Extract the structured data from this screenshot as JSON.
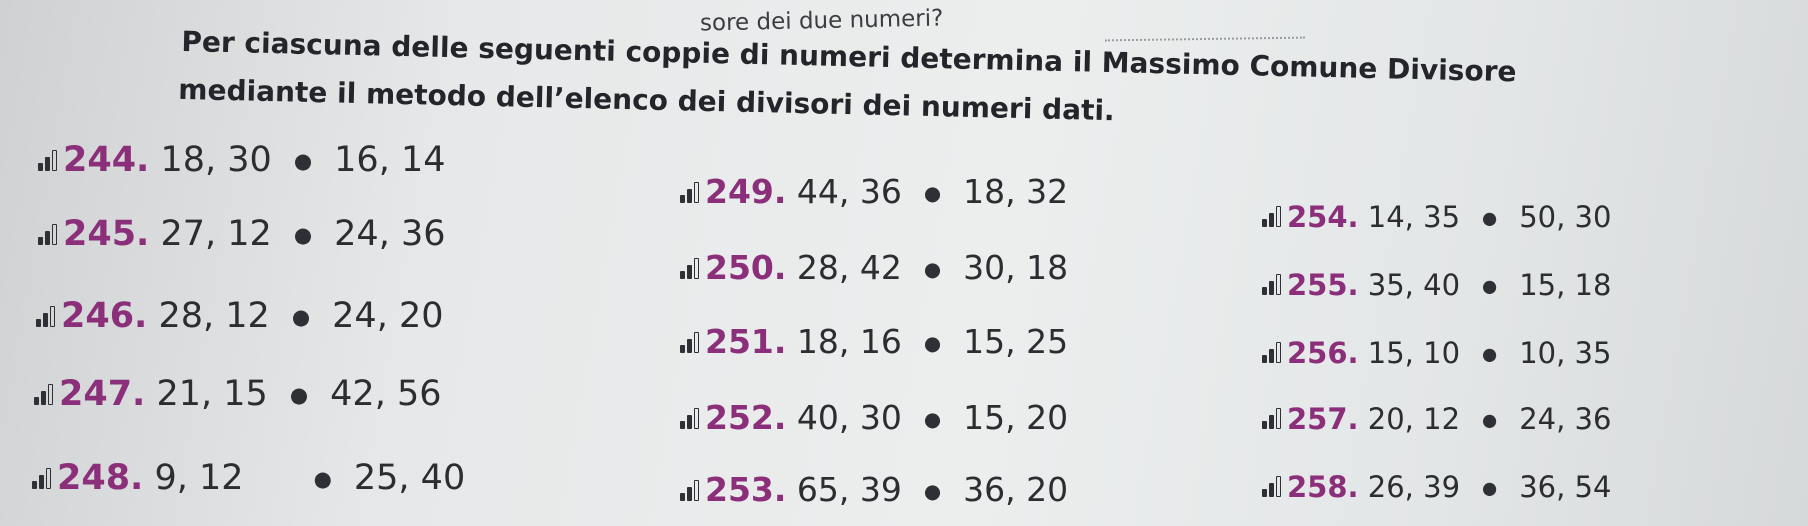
{
  "header_fragment": "sore dei due numeri?",
  "heading": {
    "line1": "Per ciascuna delle seguenti coppie di numeri determina il Massimo Comune Divisore",
    "line2": "mediante il metodo dell’elenco dei divisori dei numeri dati."
  },
  "difficulty_levels": {
    "col1": "1 of 3 bars filled",
    "col2": "2 of 3 bars filled",
    "col3": "2 of 3 bars filled"
  },
  "exercises": {
    "col1": [
      {
        "number": "244.",
        "pair_a": "18, 30",
        "pair_b": "16, 14"
      },
      {
        "number": "245.",
        "pair_a": "27, 12",
        "pair_b": "24, 36"
      },
      {
        "number": "246.",
        "pair_a": "28, 12",
        "pair_b": "24, 20"
      },
      {
        "number": "247.",
        "pair_a": "21, 15",
        "pair_b": "42, 56"
      },
      {
        "number": "248.",
        "pair_a": "9, 12",
        "pair_b": "25, 40"
      }
    ],
    "col2": [
      {
        "number": "249.",
        "pair_a": "44, 36",
        "pair_b": "18, 32"
      },
      {
        "number": "250.",
        "pair_a": "28, 42",
        "pair_b": "30, 18"
      },
      {
        "number": "251.",
        "pair_a": "18, 16",
        "pair_b": "15, 25"
      },
      {
        "number": "252.",
        "pair_a": "40, 30",
        "pair_b": "15, 20"
      },
      {
        "number": "253.",
        "pair_a": "65, 39",
        "pair_b": "36, 20"
      }
    ],
    "col3": [
      {
        "number": "254.",
        "pair_a": "14, 35",
        "pair_b": "50, 30"
      },
      {
        "number": "255.",
        "pair_a": "35, 40",
        "pair_b": "15, 18"
      },
      {
        "number": "256.",
        "pair_a": "15, 10",
        "pair_b": "10, 35"
      },
      {
        "number": "257.",
        "pair_a": "20, 12",
        "pair_b": "24, 36"
      },
      {
        "number": "258.",
        "pair_a": "26, 39",
        "pair_b": "36, 54"
      }
    ]
  },
  "colors": {
    "exercise_number": "#8b2f7a",
    "text": "#2a2c30"
  }
}
